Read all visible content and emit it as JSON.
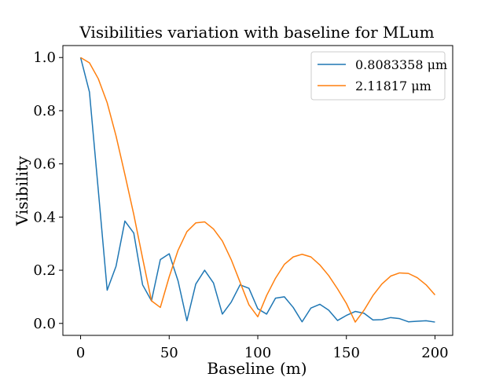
{
  "chart_data": {
    "type": "line",
    "title": "Visibilities variation with baseline for MLum",
    "xlabel": "Baseline (m)",
    "ylabel": "Visibility",
    "xlim": [
      -10,
      210
    ],
    "ylim": [
      -0.045,
      1.045
    ],
    "xticks": [
      0,
      50,
      100,
      150,
      200
    ],
    "yticks": [
      0.0,
      0.2,
      0.4,
      0.6,
      0.8,
      1.0
    ],
    "xtick_labels": [
      "0",
      "50",
      "100",
      "150",
      "200"
    ],
    "ytick_labels": [
      "0.0",
      "0.2",
      "0.4",
      "0.6",
      "0.8",
      "1.0"
    ],
    "grid": false,
    "legend_position": "top-right",
    "x": [
      0,
      5,
      10,
      15,
      20,
      25,
      30,
      35,
      40,
      45,
      50,
      55,
      60,
      65,
      70,
      75,
      80,
      85,
      90,
      95,
      100,
      105,
      110,
      115,
      120,
      125,
      130,
      135,
      140,
      145,
      150,
      155,
      160,
      165,
      170,
      175,
      180,
      185,
      190,
      195,
      200
    ],
    "series": [
      {
        "name": "0.8083358 μm",
        "color": "#1f77b4",
        "values": [
          1.0,
          0.87,
          0.5,
          0.125,
          0.215,
          0.385,
          0.34,
          0.145,
          0.085,
          0.24,
          0.262,
          0.16,
          0.01,
          0.148,
          0.2,
          0.152,
          0.035,
          0.08,
          0.145,
          0.132,
          0.055,
          0.035,
          0.095,
          0.1,
          0.06,
          0.006,
          0.058,
          0.072,
          0.05,
          0.011,
          0.03,
          0.045,
          0.038,
          0.013,
          0.014,
          0.022,
          0.018,
          0.006,
          0.008,
          0.01,
          0.005
        ]
      },
      {
        "name": "2.11817 μm",
        "color": "#ff7f0e",
        "values": [
          1.0,
          0.98,
          0.92,
          0.83,
          0.705,
          0.56,
          0.41,
          0.245,
          0.085,
          0.06,
          0.175,
          0.275,
          0.345,
          0.378,
          0.382,
          0.355,
          0.31,
          0.24,
          0.155,
          0.07,
          0.025,
          0.105,
          0.17,
          0.222,
          0.25,
          0.26,
          0.25,
          0.22,
          0.18,
          0.13,
          0.075,
          0.005,
          0.05,
          0.105,
          0.148,
          0.178,
          0.19,
          0.188,
          0.172,
          0.145,
          0.107
        ]
      }
    ]
  }
}
